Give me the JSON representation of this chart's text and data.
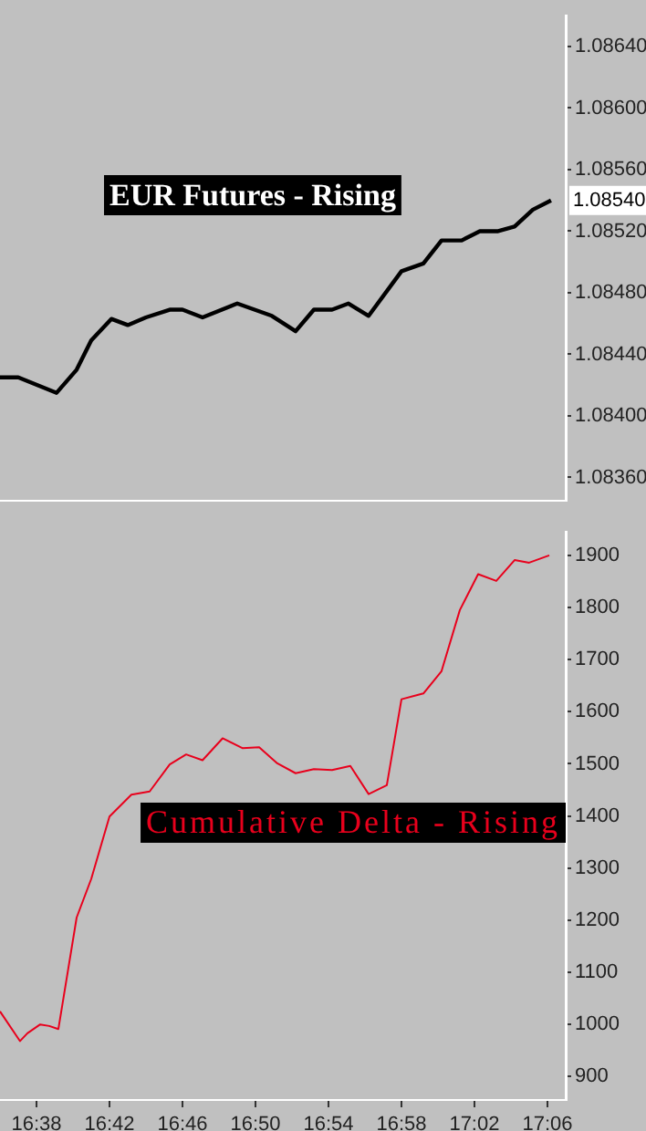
{
  "chart_data": [
    {
      "type": "line",
      "tick_labels": "y",
      "grid": false,
      "legend": false,
      "xlim": [
        16.6,
        17.1167
      ],
      "ylim": [
        1.08345,
        1.0866
      ],
      "yticks": [
        {
          "value": 1.0836,
          "label": "1.08360"
        },
        {
          "value": 1.084,
          "label": "1.08400"
        },
        {
          "value": 1.0844,
          "label": "1.08440"
        },
        {
          "value": 1.0848,
          "label": "1.08480"
        },
        {
          "value": 1.0852,
          "label": "1.08520"
        },
        {
          "value": 1.0856,
          "label": "1.08560"
        },
        {
          "value": 1.086,
          "label": "1.08600"
        },
        {
          "value": 1.0864,
          "label": "1.08640"
        }
      ],
      "annotations": [
        "EUR Futures - Rising",
        {
          "text": "1.08540",
          "x": 17.1033,
          "y": 1.0854
        }
      ],
      "series": [
        {
          "color": "#000000",
          "x": [
            16.6,
            16.6167,
            16.6517,
            16.67,
            16.6833,
            16.7017,
            16.7167,
            16.7333,
            16.755,
            16.7667,
            16.785,
            16.8167,
            16.8483,
            16.87,
            16.8867,
            16.9033,
            16.9183,
            16.9367,
            16.9667,
            16.9867,
            17.0033,
            17.0217,
            17.0383,
            17.055,
            17.07,
            17.0867,
            17.1033
          ],
          "values": [
            1.08425,
            1.08425,
            1.08415,
            1.0843,
            1.08449,
            1.08463,
            1.08459,
            1.08464,
            1.08469,
            1.08469,
            1.08464,
            1.08473,
            1.08465,
            1.08455,
            1.08469,
            1.08469,
            1.08473,
            1.08465,
            1.08494,
            1.08499,
            1.08514,
            1.08514,
            1.0852,
            1.0852,
            1.08523,
            1.08534,
            1.0854
          ]
        }
      ]
    },
    {
      "type": "line",
      "grid": false,
      "legend": false,
      "xlim": [
        16.6,
        17.1167
      ],
      "xticks": [
        {
          "value": 16.6333,
          "label": "16:38"
        },
        {
          "value": 16.7,
          "label": "16:42"
        },
        {
          "value": 16.7667,
          "label": "16:46"
        },
        {
          "value": 16.8333,
          "label": "16:50"
        },
        {
          "value": 16.9,
          "label": "16:54"
        },
        {
          "value": 16.9667,
          "label": "16:58"
        },
        {
          "value": 17.0333,
          "label": "17:02"
        },
        {
          "value": 17.1,
          "label": "17:06"
        }
      ],
      "ylim": [
        855,
        1945
      ],
      "yticks": [
        900,
        1000,
        1100,
        1200,
        1300,
        1400,
        1500,
        1600,
        1700,
        1800,
        1900
      ],
      "annotations": [
        "Cumulative Delta - Rising"
      ],
      "series": [
        {
          "color": "#e8001c",
          "x": [
            16.6,
            16.6183,
            16.625,
            16.6367,
            16.645,
            16.6533,
            16.67,
            16.6833,
            16.7,
            16.72,
            16.7367,
            16.755,
            16.77,
            16.785,
            16.8033,
            16.8217,
            16.8367,
            16.8533,
            16.87,
            16.8867,
            16.9033,
            16.92,
            16.9367,
            16.9533,
            16.9667,
            16.9867,
            17.0033,
            17.02,
            17.0367,
            17.0533,
            17.07,
            17.0833,
            17.1017
          ],
          "values": [
            1025,
            968,
            983,
            1000,
            997,
            991,
            1205,
            1279,
            1399,
            1441,
            1447,
            1499,
            1518,
            1507,
            1549,
            1530,
            1532,
            1501,
            1482,
            1490,
            1488,
            1496,
            1442,
            1459,
            1624,
            1635,
            1678,
            1795,
            1864,
            1851,
            1891,
            1886,
            1900
          ]
        }
      ]
    }
  ]
}
